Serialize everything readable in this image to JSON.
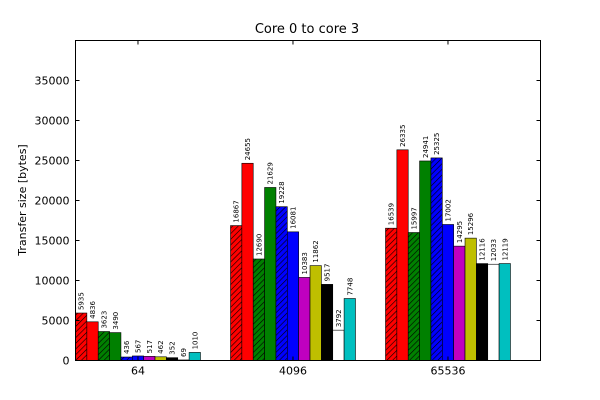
{
  "chart_data": {
    "type": "bar",
    "title": "Core 0 to core 3",
    "xlabel": "",
    "ylabel": "Transfer size [bytes]",
    "ylim": [
      0,
      40000
    ],
    "yticks": [
      0,
      5000,
      10000,
      15000,
      20000,
      25000,
      30000,
      35000
    ],
    "categories": [
      "64",
      "4096",
      "65536"
    ],
    "grid": false,
    "series": [
      {
        "color": "#ff0000",
        "hatch": "diagonal",
        "values": [
          5935,
          16867,
          16539
        ]
      },
      {
        "color": "#ff0000",
        "hatch": "none",
        "values": [
          4836,
          24655,
          26335
        ]
      },
      {
        "color": "#008000",
        "hatch": "diagonal",
        "values": [
          3623,
          12690,
          15997
        ]
      },
      {
        "color": "#008000",
        "hatch": "none",
        "values": [
          3490,
          21629,
          24941
        ]
      },
      {
        "color": "#0000ff",
        "hatch": "diagonal",
        "values": [
          436,
          19228,
          25325
        ]
      },
      {
        "color": "#0000ff",
        "hatch": "none",
        "values": [
          567,
          16081,
          17002
        ]
      },
      {
        "color": "#bf00bf",
        "hatch": "none",
        "values": [
          517,
          10383,
          14295
        ]
      },
      {
        "color": "#bfbf00",
        "hatch": "none",
        "values": [
          462,
          11862,
          15296
        ]
      },
      {
        "color": "#000000",
        "hatch": "none",
        "values": [
          352,
          9517,
          12116
        ]
      },
      {
        "color": "#ffffff",
        "hatch": "none",
        "values": [
          69,
          3792,
          12033
        ]
      },
      {
        "color": "#00bfbf",
        "hatch": "none",
        "values": [
          1010,
          7748,
          12119
        ]
      }
    ]
  }
}
